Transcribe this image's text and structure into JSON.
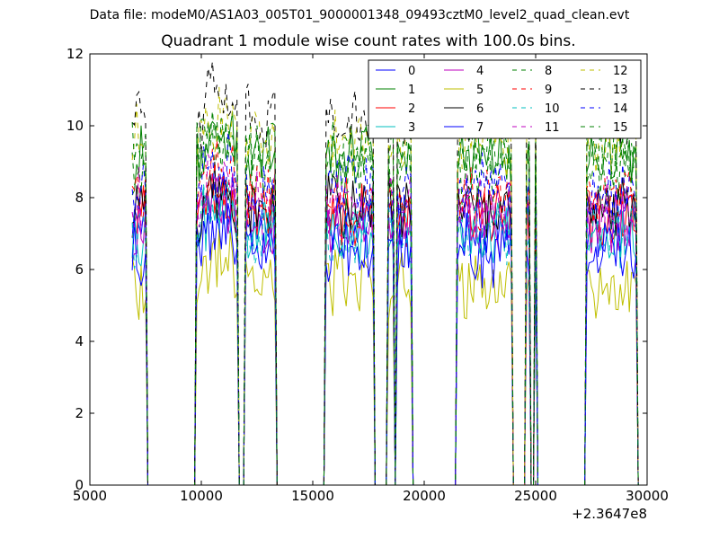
{
  "figure": {
    "suptitle": "Data file: modeM0/AS1A03_005T01_9000001348_09493cztM0_level2_quad_clean.evt"
  },
  "chart_data": {
    "type": "line",
    "title": "Quadrant 1 module wise count rates with 100.0s bins.",
    "xlabel": "",
    "ylabel": "",
    "x_offset_label": "+2.3647e8",
    "xlim": [
      5000,
      30000
    ],
    "ylim": [
      0,
      12
    ],
    "xticks": [
      5000,
      10000,
      15000,
      20000,
      25000,
      30000
    ],
    "xtick_labels": [
      "5000",
      "10000",
      "15000",
      "20000",
      "25000",
      "30000"
    ],
    "yticks": [
      0,
      2,
      4,
      6,
      8,
      10,
      12
    ],
    "ytick_labels": [
      "0",
      "2",
      "4",
      "6",
      "8",
      "10",
      "12"
    ],
    "grid": false,
    "legend_position": "top-right",
    "bin_size": 100,
    "active_intervals": [
      [
        6900,
        7600
      ],
      [
        9800,
        11700
      ],
      [
        12000,
        13400
      ],
      [
        15600,
        17800
      ],
      [
        18400,
        18700
      ],
      [
        18800,
        19500
      ],
      [
        21500,
        24000
      ],
      [
        24600,
        24800
      ],
      [
        25000,
        25100
      ],
      [
        27300,
        29600
      ]
    ],
    "series": [
      {
        "name": "0",
        "color": "#0000ff",
        "style": "solid",
        "level": 7.3
      },
      {
        "name": "1",
        "color": "#008000",
        "style": "solid",
        "level": 9.1
      },
      {
        "name": "2",
        "color": "#ff0000",
        "style": "solid",
        "level": 7.5
      },
      {
        "name": "3",
        "color": "#00bfbf",
        "style": "solid",
        "level": 7.0
      },
      {
        "name": "4",
        "color": "#bf00bf",
        "style": "solid",
        "level": 7.2
      },
      {
        "name": "5",
        "color": "#bfbf00",
        "style": "solid",
        "level": 5.6
      },
      {
        "name": "6",
        "color": "#000000",
        "style": "solid",
        "level": 7.7
      },
      {
        "name": "7",
        "color": "#0000ff",
        "style": "solid",
        "level": 6.5
      },
      {
        "name": "8",
        "color": "#008000",
        "style": "dashed",
        "level": 8.7
      },
      {
        "name": "9",
        "color": "#ff0000",
        "style": "dashed",
        "level": 8.0
      },
      {
        "name": "10",
        "color": "#00bfbf",
        "style": "dashed",
        "level": 6.9
      },
      {
        "name": "11",
        "color": "#bf00bf",
        "style": "dashed",
        "level": 7.8
      },
      {
        "name": "12",
        "color": "#bfbf00",
        "style": "dashed",
        "level": 9.6
      },
      {
        "name": "13",
        "color": "#000000",
        "style": "dashed",
        "level": 10.3
      },
      {
        "name": "14",
        "color": "#0000ff",
        "style": "dashed",
        "level": 8.2
      },
      {
        "name": "15",
        "color": "#008000",
        "style": "dashed",
        "level": 9.4
      }
    ]
  }
}
